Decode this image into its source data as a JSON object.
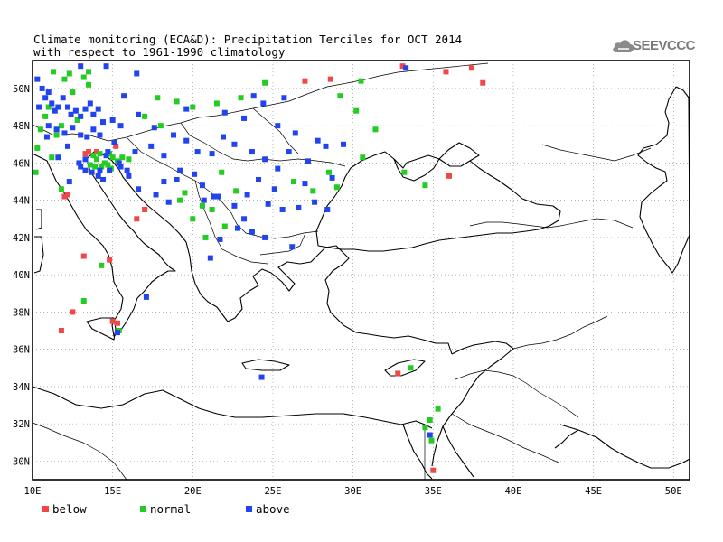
{
  "title": {
    "line1": "Climate monitoring (ECA&D): Precipitation Terciles for OCT 2014",
    "line2": "with respect to 1961-1990 climatology"
  },
  "logo": {
    "text": "SEEVCCC",
    "icon": "cloud-icon"
  },
  "colors": {
    "below": "#f04848",
    "normal": "#22cc22",
    "above": "#2244ee",
    "coast": "#000000",
    "grid": "#888888"
  },
  "axes": {
    "x_ticks": [
      "10E",
      "15E",
      "20E",
      "25E",
      "30E",
      "35E",
      "40E",
      "45E",
      "50E"
    ],
    "y_ticks": [
      "50N",
      "48N",
      "46N",
      "44N",
      "42N",
      "40N",
      "38N",
      "36N",
      "34N",
      "32N",
      "30N"
    ]
  },
  "legend": {
    "below": "below",
    "normal": "normal",
    "above": "above"
  },
  "chart_data": {
    "type": "scatter",
    "title": "Climate monitoring (ECA&D): Precipitation Terciles for OCT 2014",
    "subtitle": "with respect to 1961-1990 climatology",
    "xlim": [
      10,
      51
    ],
    "ylim": [
      29,
      51.5
    ],
    "grid": true,
    "legend_position": "bottom-left",
    "series": [
      {
        "name": "below",
        "points": [
          [
            12.2,
            44.3
          ],
          [
            12.0,
            44.2
          ],
          [
            13.2,
            41.0
          ],
          [
            14.8,
            40.8
          ],
          [
            15.0,
            37.5
          ],
          [
            11.8,
            37.0
          ],
          [
            12.5,
            38.0
          ],
          [
            16.5,
            43.0
          ],
          [
            13.3,
            46.5
          ],
          [
            13.5,
            46.6
          ],
          [
            14.0,
            46.6
          ],
          [
            15.2,
            46.9
          ],
          [
            17.0,
            43.5
          ],
          [
            32.8,
            34.7
          ],
          [
            36.0,
            45.3
          ],
          [
            27.0,
            50.4
          ],
          [
            28.6,
            50.5
          ],
          [
            33.1,
            51.2
          ],
          [
            35.8,
            50.9
          ],
          [
            37.4,
            51.1
          ],
          [
            38.1,
            50.3
          ],
          [
            35.0,
            29.5
          ],
          [
            15.3,
            37.4
          ]
        ]
      },
      {
        "name": "normal",
        "points": [
          [
            10.2,
            45.5
          ],
          [
            10.5,
            47.8
          ],
          [
            10.8,
            48.5
          ],
          [
            11.0,
            49.0
          ],
          [
            11.2,
            46.3
          ],
          [
            11.5,
            47.5
          ],
          [
            11.8,
            48.0
          ],
          [
            12.0,
            50.5
          ],
          [
            12.3,
            50.8
          ],
          [
            12.5,
            49.8
          ],
          [
            12.8,
            48.3
          ],
          [
            13.2,
            50.6
          ],
          [
            13.5,
            50.2
          ],
          [
            14.3,
            45.8
          ],
          [
            14.5,
            46.0
          ],
          [
            14.7,
            45.9
          ],
          [
            15.0,
            46.3
          ],
          [
            14.0,
            46.2
          ],
          [
            13.8,
            46.4
          ],
          [
            14.2,
            46.5
          ],
          [
            13.6,
            45.9
          ],
          [
            14.9,
            45.7
          ],
          [
            15.3,
            46.1
          ],
          [
            15.6,
            46.3
          ],
          [
            16.0,
            46.2
          ],
          [
            14.8,
            46.5
          ],
          [
            13.9,
            45.8
          ],
          [
            17.0,
            48.5
          ],
          [
            18.0,
            48.0
          ],
          [
            17.8,
            49.5
          ],
          [
            19.0,
            49.3
          ],
          [
            20.0,
            49.0
          ],
          [
            21.5,
            49.2
          ],
          [
            23.0,
            49.5
          ],
          [
            24.5,
            50.3
          ],
          [
            19.2,
            44.0
          ],
          [
            19.5,
            44.4
          ],
          [
            20.0,
            43.0
          ],
          [
            20.6,
            43.7
          ],
          [
            21.2,
            43.5
          ],
          [
            22.0,
            42.6
          ],
          [
            20.8,
            42.0
          ],
          [
            21.8,
            45.5
          ],
          [
            22.7,
            44.5
          ],
          [
            26.3,
            45.0
          ],
          [
            27.5,
            44.5
          ],
          [
            28.5,
            45.5
          ],
          [
            29.0,
            44.7
          ],
          [
            30.6,
            46.3
          ],
          [
            30.2,
            48.8
          ],
          [
            30.5,
            50.4
          ],
          [
            31.4,
            47.8
          ],
          [
            29.2,
            49.6
          ],
          [
            33.2,
            45.5
          ],
          [
            34.5,
            44.8
          ],
          [
            33.6,
            35.0
          ],
          [
            34.5,
            31.8
          ],
          [
            34.8,
            32.2
          ],
          [
            35.3,
            32.8
          ],
          [
            34.9,
            31.1
          ],
          [
            13.2,
            38.6
          ],
          [
            15.4,
            37.0
          ],
          [
            14.3,
            40.5
          ],
          [
            11.3,
            50.9
          ],
          [
            10.3,
            46.8
          ],
          [
            11.8,
            44.6
          ],
          [
            13.5,
            50.9
          ]
        ]
      },
      {
        "name": "above",
        "points": [
          [
            10.3,
            50.5
          ],
          [
            10.6,
            50.0
          ],
          [
            10.8,
            49.5
          ],
          [
            11.0,
            49.8
          ],
          [
            11.2,
            49.2
          ],
          [
            11.4,
            48.8
          ],
          [
            11.6,
            49.0
          ],
          [
            11.9,
            49.5
          ],
          [
            12.2,
            49.0
          ],
          [
            12.4,
            48.6
          ],
          [
            12.7,
            48.8
          ],
          [
            13.0,
            48.5
          ],
          [
            13.3,
            48.9
          ],
          [
            13.6,
            49.2
          ],
          [
            13.8,
            48.6
          ],
          [
            14.1,
            48.9
          ],
          [
            14.4,
            48.2
          ],
          [
            11.0,
            48.0
          ],
          [
            11.5,
            47.8
          ],
          [
            12.0,
            47.6
          ],
          [
            12.5,
            47.9
          ],
          [
            13.0,
            47.5
          ],
          [
            13.4,
            47.4
          ],
          [
            13.8,
            47.8
          ],
          [
            14.2,
            47.5
          ],
          [
            15.0,
            48.3
          ],
          [
            15.5,
            48.0
          ],
          [
            15.7,
            49.6
          ],
          [
            15.1,
            47.1
          ],
          [
            14.6,
            46.4
          ],
          [
            15.5,
            45.8
          ],
          [
            15.9,
            45.6
          ],
          [
            16.4,
            46.6
          ],
          [
            17.4,
            46.9
          ],
          [
            18.2,
            46.4
          ],
          [
            18.8,
            47.5
          ],
          [
            19.6,
            47.2
          ],
          [
            20.3,
            46.6
          ],
          [
            21.2,
            46.5
          ],
          [
            21.9,
            47.4
          ],
          [
            22.6,
            47.0
          ],
          [
            23.7,
            46.6
          ],
          [
            24.5,
            46.2
          ],
          [
            25.3,
            45.7
          ],
          [
            26.0,
            46.6
          ],
          [
            27.2,
            46.1
          ],
          [
            27.8,
            47.2
          ],
          [
            26.4,
            47.6
          ],
          [
            24.1,
            45.1
          ],
          [
            25.1,
            44.6
          ],
          [
            23.4,
            44.3
          ],
          [
            24.7,
            43.8
          ],
          [
            25.6,
            43.5
          ],
          [
            26.6,
            43.6
          ],
          [
            27.6,
            43.9
          ],
          [
            28.4,
            43.5
          ],
          [
            23.2,
            43.0
          ],
          [
            22.6,
            43.7
          ],
          [
            21.6,
            44.2
          ],
          [
            20.6,
            44.8
          ],
          [
            20.1,
            45.4
          ],
          [
            19.2,
            45.6
          ],
          [
            18.2,
            45.0
          ],
          [
            17.7,
            44.3
          ],
          [
            18.5,
            43.9
          ],
          [
            16.6,
            44.6
          ],
          [
            16.0,
            45.3
          ],
          [
            12.9,
            46.0
          ],
          [
            13.3,
            45.6
          ],
          [
            13.7,
            45.5
          ],
          [
            14.1,
            45.3
          ],
          [
            14.4,
            45.1
          ],
          [
            23.2,
            48.4
          ],
          [
            24.4,
            49.2
          ],
          [
            25.7,
            49.5
          ],
          [
            25.3,
            48.0
          ],
          [
            28.3,
            46.9
          ],
          [
            29.4,
            47.0
          ],
          [
            28.7,
            45.2
          ],
          [
            23.7,
            42.3
          ],
          [
            24.5,
            42.0
          ],
          [
            21.7,
            41.9
          ],
          [
            22.8,
            42.5
          ],
          [
            19.0,
            45.1
          ],
          [
            20.7,
            44.0
          ],
          [
            21.3,
            44.2
          ],
          [
            14.7,
            46.6
          ],
          [
            14.2,
            45.6
          ],
          [
            14.8,
            45.6
          ],
          [
            15.4,
            46.0
          ],
          [
            13.3,
            46.2
          ],
          [
            13.0,
            45.8
          ],
          [
            12.2,
            46.9
          ],
          [
            11.6,
            46.3
          ],
          [
            22.0,
            48.7
          ],
          [
            19.6,
            48.9
          ],
          [
            16.6,
            48.6
          ],
          [
            17.6,
            47.9
          ],
          [
            21.1,
            40.9
          ],
          [
            26.2,
            41.5
          ],
          [
            27.0,
            44.9
          ],
          [
            34.8,
            31.4
          ],
          [
            10.4,
            49.0
          ],
          [
            10.9,
            47.4
          ],
          [
            12.3,
            45.0
          ],
          [
            17.1,
            38.8
          ],
          [
            15.3,
            36.9
          ],
          [
            13.0,
            51.2
          ],
          [
            14.6,
            51.2
          ],
          [
            16.5,
            50.8
          ],
          [
            24.3,
            34.5
          ],
          [
            33.3,
            51.1
          ],
          [
            23.8,
            49.6
          ]
        ]
      }
    ]
  }
}
